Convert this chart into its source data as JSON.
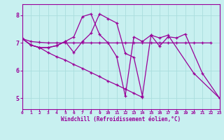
{
  "xlabel": "Windchill (Refroidissement éolien,°C)",
  "bg_color": "#c8f0f0",
  "line_color": "#990099",
  "grid_color": "#aadddd",
  "xlim": [
    0,
    23
  ],
  "ylim": [
    4.6,
    8.4
  ],
  "yticks": [
    5,
    6,
    7,
    8
  ],
  "xticks": [
    0,
    1,
    2,
    3,
    4,
    5,
    6,
    7,
    8,
    9,
    10,
    11,
    12,
    13,
    14,
    15,
    16,
    17,
    18,
    19,
    20,
    21,
    22,
    23
  ],
  "series": [
    {
      "x": [
        0,
        1,
        2,
        3,
        4,
        5,
        6,
        7,
        8,
        9,
        10,
        11,
        12,
        13,
        14,
        15,
        16,
        17,
        18,
        19,
        21,
        23
      ],
      "y": [
        7.15,
        6.92,
        6.83,
        6.83,
        6.9,
        7.05,
        6.65,
        7.05,
        7.35,
        8.05,
        7.88,
        7.72,
        6.62,
        6.48,
        5.08,
        7.28,
        6.88,
        7.22,
        7.18,
        7.32,
        5.9,
        5.0
      ]
    },
    {
      "x": [
        0,
        1,
        2,
        3,
        4,
        5,
        6,
        7,
        8,
        9,
        10,
        11,
        12,
        13,
        14,
        15,
        16,
        17,
        20,
        23
      ],
      "y": [
        7.15,
        6.92,
        6.83,
        6.83,
        6.9,
        7.05,
        7.22,
        7.95,
        8.05,
        7.3,
        7.0,
        6.5,
        5.08,
        7.22,
        7.05,
        7.28,
        7.18,
        7.28,
        5.9,
        5.0
      ]
    },
    {
      "x": [
        0,
        1,
        2,
        3,
        4,
        5,
        6,
        7,
        8,
        9,
        10,
        11,
        12,
        13,
        14
      ],
      "y": [
        7.15,
        6.92,
        6.83,
        6.65,
        6.5,
        6.38,
        6.22,
        6.08,
        5.93,
        5.78,
        5.62,
        5.48,
        5.33,
        5.18,
        5.03
      ]
    },
    {
      "x": [
        0,
        1,
        2,
        3,
        4,
        5,
        6,
        7,
        8,
        9,
        10,
        11,
        12,
        13,
        14,
        15,
        16,
        17,
        18,
        19,
        20,
        21,
        22
      ],
      "y": [
        7.15,
        7.05,
        7.02,
        7.0,
        7.0,
        7.0,
        7.0,
        7.0,
        7.0,
        7.0,
        7.0,
        7.0,
        7.0,
        7.0,
        7.0,
        7.0,
        7.0,
        7.0,
        7.0,
        7.0,
        7.0,
        7.0,
        7.0
      ]
    }
  ]
}
